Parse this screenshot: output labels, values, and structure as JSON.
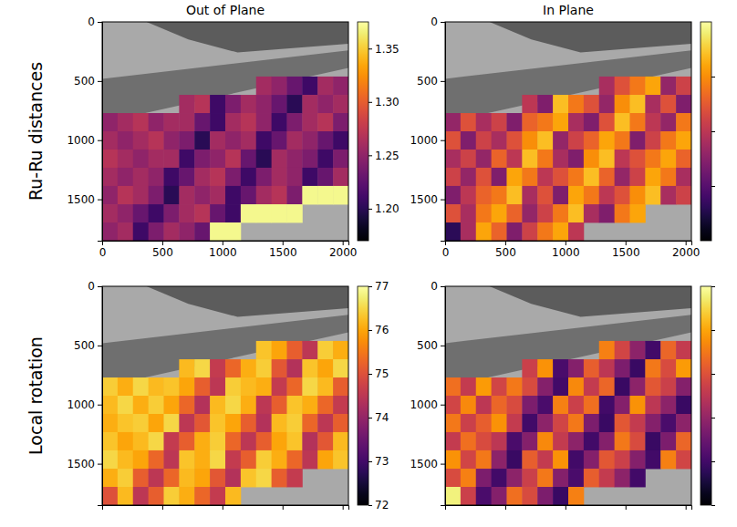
{
  "chart_data": [
    {
      "type": "heatmap",
      "title": "Out of Plane",
      "ylabel": "Ru-Ru distances",
      "color": "inferno",
      "xlim": [
        0,
        2048
      ],
      "ylim": [
        1850,
        0
      ],
      "xticks": [
        0,
        500,
        1000,
        1500,
        2000
      ],
      "yticks": [
        0,
        500,
        1000,
        1500
      ],
      "x_edges": [
        0,
        128,
        256,
        384,
        512,
        640,
        768,
        896,
        1024,
        1152,
        1280,
        1408,
        1536,
        1664,
        1792,
        1920,
        2048
      ],
      "y_edges": [
        0,
        154,
        308,
        462,
        617,
        771,
        925,
        1079,
        1233,
        1387,
        1542,
        1696,
        1850
      ],
      "cells": [
        [
          null,
          null,
          null,
          null,
          null,
          null,
          null,
          null,
          null,
          null,
          null,
          null,
          null,
          null,
          null,
          null
        ],
        [
          null,
          null,
          null,
          null,
          null,
          null,
          null,
          null,
          null,
          null,
          null,
          null,
          null,
          null,
          null,
          null
        ],
        [
          null,
          null,
          null,
          null,
          null,
          null,
          null,
          null,
          null,
          null,
          null,
          null,
          null,
          null,
          null,
          null
        ],
        [
          null,
          null,
          null,
          null,
          null,
          null,
          null,
          null,
          null,
          null,
          1.26,
          1.25,
          1.23,
          1.21,
          1.26,
          1.25
        ],
        [
          null,
          null,
          null,
          null,
          null,
          1.26,
          1.27,
          1.21,
          1.24,
          1.26,
          1.25,
          1.23,
          1.2,
          1.26,
          1.25,
          1.26
        ],
        [
          1.25,
          1.26,
          1.27,
          1.25,
          1.26,
          1.26,
          1.23,
          1.21,
          1.26,
          1.27,
          1.25,
          1.21,
          1.24,
          1.26,
          1.27,
          1.24
        ],
        [
          1.26,
          1.25,
          1.26,
          1.27,
          1.25,
          1.24,
          1.2,
          1.26,
          1.25,
          1.26,
          1.21,
          1.23,
          1.26,
          1.25,
          1.23,
          1.21
        ],
        [
          1.27,
          1.26,
          1.25,
          1.26,
          1.26,
          1.21,
          1.24,
          1.25,
          1.27,
          1.23,
          1.2,
          1.26,
          1.25,
          1.24,
          1.21,
          1.24
        ],
        [
          1.26,
          1.25,
          1.26,
          1.25,
          1.21,
          1.23,
          1.26,
          1.27,
          1.24,
          1.21,
          1.24,
          1.26,
          1.25,
          1.21,
          1.23,
          1.26
        ],
        [
          1.25,
          1.27,
          1.26,
          1.24,
          1.2,
          1.26,
          1.25,
          1.26,
          1.21,
          1.23,
          1.26,
          1.27,
          1.24,
          1.37,
          1.37,
          1.37
        ],
        [
          1.26,
          1.25,
          1.23,
          1.21,
          1.24,
          1.26,
          1.27,
          1.23,
          1.21,
          1.37,
          1.37,
          1.37,
          1.37,
          null,
          null,
          null
        ],
        [
          1.25,
          1.26,
          1.21,
          1.24,
          1.26,
          1.25,
          1.23,
          1.37,
          1.37,
          null,
          null,
          null,
          null,
          null,
          null,
          null
        ]
      ],
      "colorbar": {
        "range": [
          1.17,
          1.375
        ],
        "ticks": [
          {
            "value": 1.2,
            "label": "1.20"
          },
          {
            "value": 1.25,
            "label": "1.25"
          },
          {
            "value": 1.3,
            "label": "1.30"
          },
          {
            "value": 1.35,
            "label": "1.35"
          }
        ]
      }
    },
    {
      "type": "heatmap",
      "title": "In Plane",
      "color": "inferno",
      "xlim": [
        0,
        2048
      ],
      "ylim": [
        1850,
        0
      ],
      "xticks": [
        0,
        500,
        1000,
        1500,
        2000
      ],
      "yticks": [
        0,
        500,
        1000,
        1500
      ],
      "x_edges": [
        0,
        128,
        256,
        384,
        512,
        640,
        768,
        896,
        1024,
        1152,
        1280,
        1408,
        1536,
        1664,
        1792,
        1920,
        2048
      ],
      "y_edges": [
        0,
        154,
        308,
        462,
        617,
        771,
        925,
        1079,
        1233,
        1387,
        1542,
        1696,
        1850
      ],
      "cells": [
        [
          null,
          null,
          null,
          null,
          null,
          null,
          null,
          null,
          null,
          null,
          null,
          null,
          null,
          null,
          null,
          null
        ],
        [
          null,
          null,
          null,
          null,
          null,
          null,
          null,
          null,
          null,
          null,
          null,
          null,
          null,
          null,
          null,
          null
        ],
        [
          null,
          null,
          null,
          null,
          null,
          null,
          null,
          null,
          null,
          null,
          null,
          null,
          null,
          null,
          null,
          null
        ],
        [
          null,
          null,
          null,
          null,
          null,
          null,
          null,
          null,
          null,
          null,
          1.24,
          1.27,
          1.29,
          1.31,
          1.23,
          1.26
        ],
        [
          null,
          null,
          null,
          null,
          null,
          1.25,
          1.22,
          1.32,
          1.29,
          1.27,
          1.23,
          1.3,
          1.32,
          1.24,
          1.27,
          1.22
        ],
        [
          1.23,
          1.27,
          1.24,
          1.26,
          1.22,
          1.28,
          1.29,
          1.31,
          1.24,
          1.22,
          1.27,
          1.32,
          1.29,
          1.25,
          1.23,
          1.29
        ],
        [
          1.27,
          1.22,
          1.26,
          1.24,
          1.27,
          1.3,
          1.32,
          1.23,
          1.26,
          1.28,
          1.31,
          1.29,
          1.22,
          1.26,
          1.29,
          1.31
        ],
        [
          1.24,
          1.26,
          1.23,
          1.28,
          1.25,
          1.32,
          1.29,
          1.24,
          1.22,
          1.3,
          1.32,
          1.25,
          1.27,
          1.29,
          1.31,
          1.28
        ],
        [
          1.26,
          1.23,
          1.27,
          1.22,
          1.31,
          1.29,
          1.25,
          1.27,
          1.29,
          1.32,
          1.28,
          1.23,
          1.26,
          1.31,
          1.29,
          1.24
        ],
        [
          1.22,
          1.25,
          1.28,
          1.29,
          1.32,
          1.24,
          1.27,
          1.22,
          1.31,
          1.29,
          1.25,
          1.27,
          1.3,
          1.32,
          1.24,
          1.26
        ],
        [
          1.27,
          1.24,
          1.29,
          1.31,
          1.28,
          1.23,
          1.26,
          1.29,
          1.32,
          1.24,
          1.22,
          1.29,
          1.31,
          null,
          null,
          null
        ],
        [
          1.18,
          1.24,
          1.31,
          1.28,
          1.22,
          1.26,
          1.29,
          1.31,
          1.25,
          null,
          null,
          null,
          null,
          null,
          null,
          null
        ]
      ],
      "colorbar": {
        "range": [
          1.15,
          1.35
        ],
        "ticks": [
          1.2,
          1.25,
          1.3
        ],
        "tick_labels": false
      }
    },
    {
      "type": "heatmap",
      "ylabel": "Local rotation",
      "color": "inferno",
      "tick_labels": "y",
      "xlim": [
        0,
        2048
      ],
      "ylim": [
        1850,
        0
      ],
      "xticks": [
        0,
        500,
        1000,
        1500,
        2000
      ],
      "yticks": [
        0,
        500,
        1000,
        1500
      ],
      "x_edges": [
        0,
        128,
        256,
        384,
        512,
        640,
        768,
        896,
        1024,
        1152,
        1280,
        1408,
        1536,
        1664,
        1792,
        1920,
        2048
      ],
      "y_edges": [
        0,
        154,
        308,
        462,
        617,
        771,
        925,
        1079,
        1233,
        1387,
        1542,
        1696,
        1850
      ],
      "cells": [
        [
          null,
          null,
          null,
          null,
          null,
          null,
          null,
          null,
          null,
          null,
          null,
          null,
          null,
          null,
          null,
          null
        ],
        [
          null,
          null,
          null,
          null,
          null,
          null,
          null,
          null,
          null,
          null,
          null,
          null,
          null,
          null,
          null,
          null
        ],
        [
          null,
          null,
          null,
          null,
          null,
          null,
          null,
          null,
          null,
          null,
          null,
          null,
          null,
          null,
          null,
          null
        ],
        [
          null,
          null,
          null,
          null,
          null,
          null,
          null,
          null,
          null,
          null,
          76.3,
          76.0,
          75.2,
          74.5,
          76.4,
          76.1
        ],
        [
          null,
          null,
          null,
          null,
          null,
          76.2,
          76.5,
          74.6,
          75.3,
          76.1,
          76.4,
          75.1,
          74.4,
          76.3,
          76.0,
          76.5
        ],
        [
          76.4,
          76.1,
          76.5,
          76.2,
          76.3,
          76.0,
          75.2,
          74.5,
          76.4,
          76.2,
          76.1,
          74.6,
          75.3,
          76.5,
          76.2,
          75.2
        ],
        [
          76.2,
          76.5,
          76.1,
          76.4,
          76.0,
          75.3,
          74.4,
          76.2,
          76.5,
          76.1,
          74.5,
          75.2,
          76.3,
          76.1,
          75.3,
          74.6
        ],
        [
          76.1,
          76.3,
          76.4,
          76.0,
          76.5,
          74.5,
          75.1,
          76.3,
          76.0,
          75.2,
          74.4,
          76.2,
          76.4,
          75.3,
          74.5,
          75.2
        ],
        [
          76.3,
          76.0,
          76.2,
          76.5,
          74.6,
          75.2,
          76.1,
          76.4,
          75.3,
          74.5,
          75.2,
          76.0,
          76.3,
          74.4,
          75.1,
          76.2
        ],
        [
          76.5,
          76.2,
          76.0,
          75.3,
          74.5,
          76.3,
          76.1,
          76.5,
          74.6,
          75.2,
          76.4,
          76.1,
          75.3,
          74.5,
          76.0,
          76.3
        ],
        [
          76.1,
          76.4,
          75.2,
          74.5,
          75.3,
          76.2,
          76.0,
          75.1,
          74.4,
          76.3,
          76.5,
          75.2,
          74.6,
          null,
          null,
          null
        ],
        [
          75.0,
          76.2,
          74.5,
          75.2,
          76.4,
          76.1,
          75.3,
          74.6,
          76.2,
          null,
          null,
          null,
          null,
          null,
          null,
          null
        ]
      ],
      "colorbar": {
        "range": [
          72,
          77
        ],
        "ticks": [
          72,
          73,
          74,
          75,
          76,
          77
        ]
      }
    },
    {
      "type": "heatmap",
      "color": "inferno",
      "tick_labels": "y",
      "xlim": [
        0,
        2048
      ],
      "ylim": [
        1850,
        0
      ],
      "xticks": [
        0,
        500,
        1000,
        1500,
        2000
      ],
      "yticks": [
        0,
        500,
        1000,
        1500
      ],
      "x_edges": [
        0,
        128,
        256,
        384,
        512,
        640,
        768,
        896,
        1024,
        1152,
        1280,
        1408,
        1536,
        1664,
        1792,
        1920,
        2048
      ],
      "y_edges": [
        0,
        154,
        308,
        462,
        617,
        771,
        925,
        1079,
        1233,
        1387,
        1542,
        1696,
        1850
      ],
      "cells": [
        [
          null,
          null,
          null,
          null,
          null,
          null,
          null,
          null,
          null,
          null,
          null,
          null,
          null,
          null,
          null,
          null
        ],
        [
          null,
          null,
          null,
          null,
          null,
          null,
          null,
          null,
          null,
          null,
          null,
          null,
          null,
          null,
          null,
          null
        ],
        [
          null,
          null,
          null,
          null,
          null,
          null,
          null,
          null,
          null,
          null,
          null,
          null,
          null,
          null,
          null,
          null
        ],
        [
          null,
          null,
          null,
          null,
          null,
          null,
          null,
          null,
          null,
          null,
          75.6,
          74.8,
          73.9,
          73.0,
          75.3,
          74.6
        ],
        [
          null,
          null,
          null,
          null,
          null,
          74.7,
          75.8,
          73.1,
          73.8,
          75.2,
          74.5,
          73.7,
          72.9,
          75.5,
          74.9,
          75.9
        ],
        [
          75.4,
          74.6,
          75.9,
          74.8,
          75.5,
          74.9,
          73.8,
          73.0,
          75.7,
          74.6,
          75.3,
          72.9,
          73.9,
          75.1,
          74.7,
          73.8
        ],
        [
          74.8,
          75.7,
          74.5,
          75.3,
          74.9,
          73.7,
          73.1,
          75.6,
          74.7,
          75.4,
          73.0,
          73.8,
          75.8,
          74.5,
          73.9,
          72.9
        ],
        [
          75.5,
          74.7,
          75.2,
          75.8,
          74.6,
          73.0,
          73.9,
          74.8,
          75.5,
          73.7,
          72.9,
          75.1,
          74.6,
          73.8,
          73.1,
          73.9
        ],
        [
          74.6,
          75.4,
          74.9,
          74.5,
          73.1,
          73.8,
          75.7,
          74.6,
          73.9,
          73.0,
          73.8,
          75.5,
          74.9,
          72.9,
          73.7,
          75.3
        ],
        [
          75.8,
          74.8,
          75.5,
          73.9,
          72.9,
          75.2,
          74.6,
          75.8,
          73.0,
          73.8,
          75.1,
          74.7,
          73.8,
          73.0,
          75.6,
          74.8
        ],
        [
          74.9,
          75.6,
          73.7,
          73.0,
          73.9,
          74.7,
          75.5,
          73.8,
          73.1,
          75.2,
          74.6,
          73.9,
          73.0,
          null,
          null,
          null
        ],
        [
          76.8,
          74.7,
          73.1,
          73.8,
          75.4,
          74.9,
          73.7,
          72.9,
          75.6,
          null,
          null,
          null,
          null,
          null,
          null,
          null
        ]
      ],
      "colorbar": {
        "range": [
          72,
          77
        ],
        "ticks": [
          72,
          73,
          74,
          75,
          76,
          77
        ],
        "tick_labels": false
      }
    }
  ]
}
